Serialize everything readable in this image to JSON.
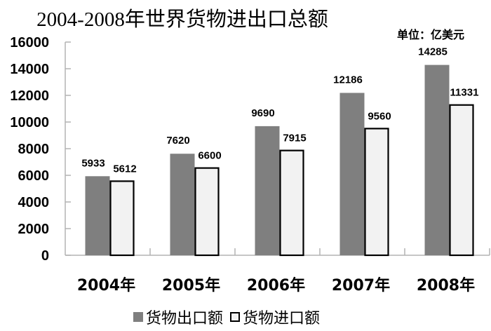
{
  "chart_data": {
    "type": "bar",
    "title": "2004-2008年世界货物进出口总额",
    "unit_label": "单位：亿美元",
    "xlabel": "",
    "ylabel": "",
    "ylim": [
      0,
      16000
    ],
    "yticks": [
      0,
      2000,
      4000,
      6000,
      8000,
      10000,
      12000,
      14000,
      16000
    ],
    "categories": [
      "2004年",
      "2005年",
      "2006年",
      "2007年",
      "2008年"
    ],
    "series": [
      {
        "name": "货物出口额",
        "color": "#7f7f7f",
        "values": [
          5933,
          7620,
          9690,
          12186,
          14285
        ]
      },
      {
        "name": "货物进口额",
        "color": "#f2f2f2",
        "edge": "#000000",
        "values": [
          5612,
          6600,
          7915,
          9560,
          11331
        ]
      }
    ],
    "grid": false,
    "legend_position": "bottom"
  }
}
